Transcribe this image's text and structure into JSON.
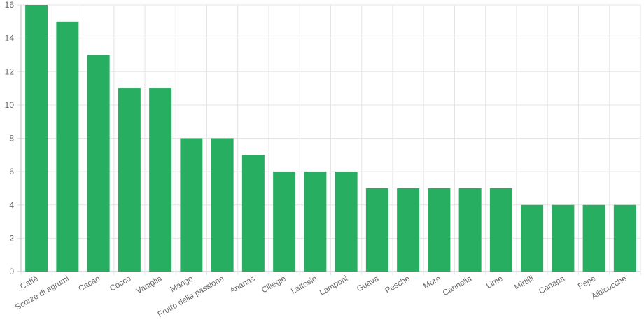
{
  "chart_data": {
    "type": "bar",
    "categories": [
      "Caffè",
      "Scorze di agrumi",
      "Cacao",
      "Cocco",
      "Vaniglia",
      "Mango",
      "Frutto della passione",
      "Ananas",
      "Ciliegie",
      "Lattosio",
      "Lamponi",
      "Guava",
      "Pesche",
      "More",
      "Cannella",
      "Lime",
      "Mirtilli",
      "Canapa",
      "Pepe",
      "Albicocche"
    ],
    "values": [
      16,
      15,
      13,
      11,
      11,
      8,
      8,
      7,
      6,
      6,
      6,
      5,
      5,
      5,
      5,
      5,
      4,
      4,
      4,
      4
    ],
    "ylim": [
      0,
      16
    ],
    "yticks": [
      0,
      2,
      4,
      6,
      8,
      10,
      12,
      14,
      16
    ],
    "grid": true,
    "legend": "none",
    "title": "",
    "xlabel": "",
    "ylabel": "",
    "colors": {
      "bar": "#27ae60",
      "grid": "#e5e5e5",
      "axis": "#bdbdbd",
      "text": "#666666"
    }
  }
}
